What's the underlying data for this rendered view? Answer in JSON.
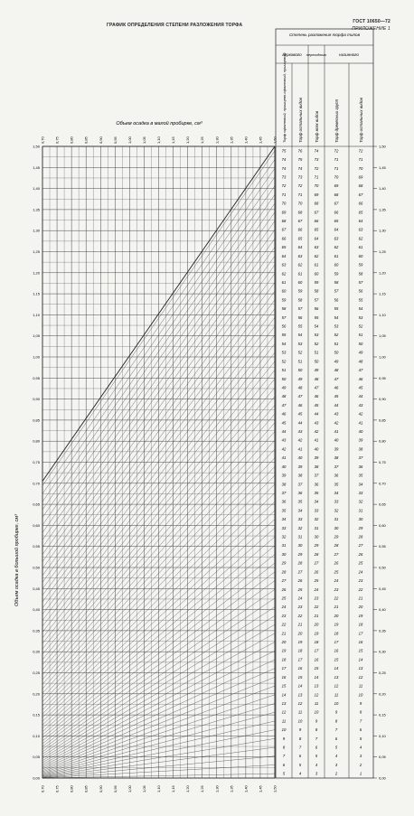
{
  "header": {
    "title": "ГРАФИК ОПРЕДЕЛЕНИЯ СТЕПЕНИ РАЗЛОЖЕНИЯ ТОРФА",
    "standard": "ГОСТ 10650—72",
    "appendix": "ПРИЛОЖЕНИЕ 1"
  },
  "chart_data": {
    "type": "line",
    "title": "ГРАФИК ОПРЕДЕЛЕНИЯ СТЕПЕНИ РАЗЛОЖЕНИЯ ТОРФА",
    "xlabel": "Объем осадка в малой пробирке, см³",
    "ylabel": "Объем осадка в большой пробирке, см³",
    "xlim": [
      0.7,
      1.5
    ],
    "ylim": [
      0.0,
      1.5
    ],
    "grid": true,
    "x_tick_labels": [
      "0,70",
      "0,75",
      "0,80",
      "0,85",
      "0,90",
      "0,95",
      "1,00",
      "1,05",
      "1,10",
      "1,15",
      "1,20",
      "1,25",
      "1,30",
      "1,35",
      "1,40",
      "1,45",
      "1,50"
    ],
    "y_tick_labels": [
      "0,00",
      "0,05",
      "0,10",
      "0,15",
      "0,20",
      "0,25",
      "0,30",
      "0,35",
      "0,40",
      "0,45",
      "0,50",
      "0,55",
      "0,60",
      "0,65",
      "0,70",
      "0,75",
      "0,80",
      "0,85",
      "0,90",
      "0,95",
      "1,00",
      "1,05",
      "1,10",
      "1,15",
      "1,20",
      "1,25",
      "1,30",
      "1,35",
      "1,40",
      "1,45",
      "1,50"
    ],
    "table": {
      "group_header": "Степень разложения торфа типов",
      "subgroups": [
        "верхового",
        "переходного",
        "низинного"
      ],
      "columns": [
        "Торф сфагновый, пушицево-сфагновый, пушицевый",
        "Торф остальных видов",
        "Торф всех видов",
        "Торф древесных групп",
        "Торф остальных видов"
      ],
      "rows": [
        [
          75,
          76,
          74,
          72,
          72
        ],
        [
          74,
          75,
          73,
          71,
          71
        ],
        [
          74,
          74,
          72,
          71,
          70
        ],
        [
          73,
          73,
          71,
          70,
          69
        ],
        [
          72,
          72,
          70,
          69,
          68
        ],
        [
          71,
          71,
          69,
          68,
          67
        ],
        [
          70,
          70,
          68,
          67,
          66
        ],
        [
          69,
          68,
          67,
          66,
          65
        ],
        [
          68,
          67,
          66,
          65,
          64
        ],
        [
          67,
          66,
          65,
          64,
          63
        ],
        [
          66,
          65,
          64,
          63,
          62
        ],
        [
          65,
          64,
          63,
          62,
          61
        ],
        [
          64,
          63,
          62,
          61,
          60
        ],
        [
          63,
          62,
          61,
          60,
          59
        ],
        [
          62,
          61,
          60,
          59,
          58
        ],
        [
          61,
          60,
          59,
          58,
          57
        ],
        [
          60,
          59,
          58,
          57,
          56
        ],
        [
          59,
          58,
          57,
          56,
          55
        ],
        [
          58,
          57,
          56,
          55,
          54
        ],
        [
          57,
          56,
          55,
          54,
          53
        ],
        [
          56,
          55,
          54,
          53,
          52
        ],
        [
          55,
          54,
          53,
          52,
          51
        ],
        [
          54,
          53,
          52,
          51,
          50
        ],
        [
          53,
          52,
          51,
          50,
          49
        ],
        [
          52,
          51,
          50,
          49,
          48
        ],
        [
          51,
          50,
          49,
          48,
          47
        ],
        [
          50,
          49,
          48,
          47,
          46
        ],
        [
          49,
          48,
          47,
          46,
          45
        ],
        [
          48,
          47,
          46,
          45,
          44
        ],
        [
          47,
          46,
          45,
          44,
          43
        ],
        [
          46,
          45,
          44,
          43,
          42
        ],
        [
          45,
          44,
          43,
          42,
          41
        ],
        [
          44,
          43,
          42,
          41,
          40
        ],
        [
          43,
          42,
          41,
          40,
          39
        ],
        [
          42,
          41,
          40,
          39,
          38
        ],
        [
          41,
          40,
          39,
          38,
          37
        ],
        [
          40,
          39,
          38,
          37,
          36
        ],
        [
          39,
          38,
          37,
          36,
          35
        ],
        [
          38,
          37,
          36,
          35,
          34
        ],
        [
          37,
          36,
          35,
          34,
          33
        ],
        [
          36,
          35,
          34,
          33,
          32
        ],
        [
          35,
          34,
          33,
          32,
          31
        ],
        [
          34,
          33,
          32,
          31,
          30
        ],
        [
          33,
          32,
          31,
          30,
          29
        ],
        [
          32,
          31,
          30,
          29,
          28
        ],
        [
          31,
          30,
          29,
          28,
          27
        ],
        [
          30,
          29,
          28,
          27,
          26
        ],
        [
          29,
          28,
          27,
          26,
          25
        ],
        [
          28,
          27,
          26,
          25,
          24
        ],
        [
          27,
          26,
          25,
          24,
          23
        ],
        [
          26,
          25,
          24,
          23,
          22
        ],
        [
          25,
          24,
          23,
          22,
          21
        ],
        [
          24,
          23,
          22,
          21,
          20
        ],
        [
          23,
          22,
          21,
          20,
          19
        ],
        [
          22,
          21,
          20,
          19,
          18
        ],
        [
          21,
          20,
          19,
          18,
          17
        ],
        [
          20,
          19,
          18,
          17,
          16
        ],
        [
          19,
          18,
          17,
          16,
          15
        ],
        [
          18,
          17,
          16,
          15,
          14
        ],
        [
          17,
          16,
          15,
          14,
          13
        ],
        [
          16,
          15,
          14,
          13,
          12
        ],
        [
          15,
          14,
          13,
          12,
          11
        ],
        [
          14,
          13,
          12,
          11,
          10
        ],
        [
          13,
          12,
          11,
          10,
          9
        ],
        [
          12,
          11,
          10,
          9,
          8
        ],
        [
          11,
          10,
          9,
          8,
          7
        ],
        [
          10,
          9,
          8,
          7,
          6
        ],
        [
          9,
          8,
          7,
          6,
          5
        ],
        [
          8,
          7,
          6,
          5,
          4
        ],
        [
          7,
          6,
          5,
          4,
          3
        ],
        [
          6,
          5,
          4,
          3,
          2
        ],
        [
          5,
          4,
          3,
          2,
          1
        ]
      ]
    }
  }
}
